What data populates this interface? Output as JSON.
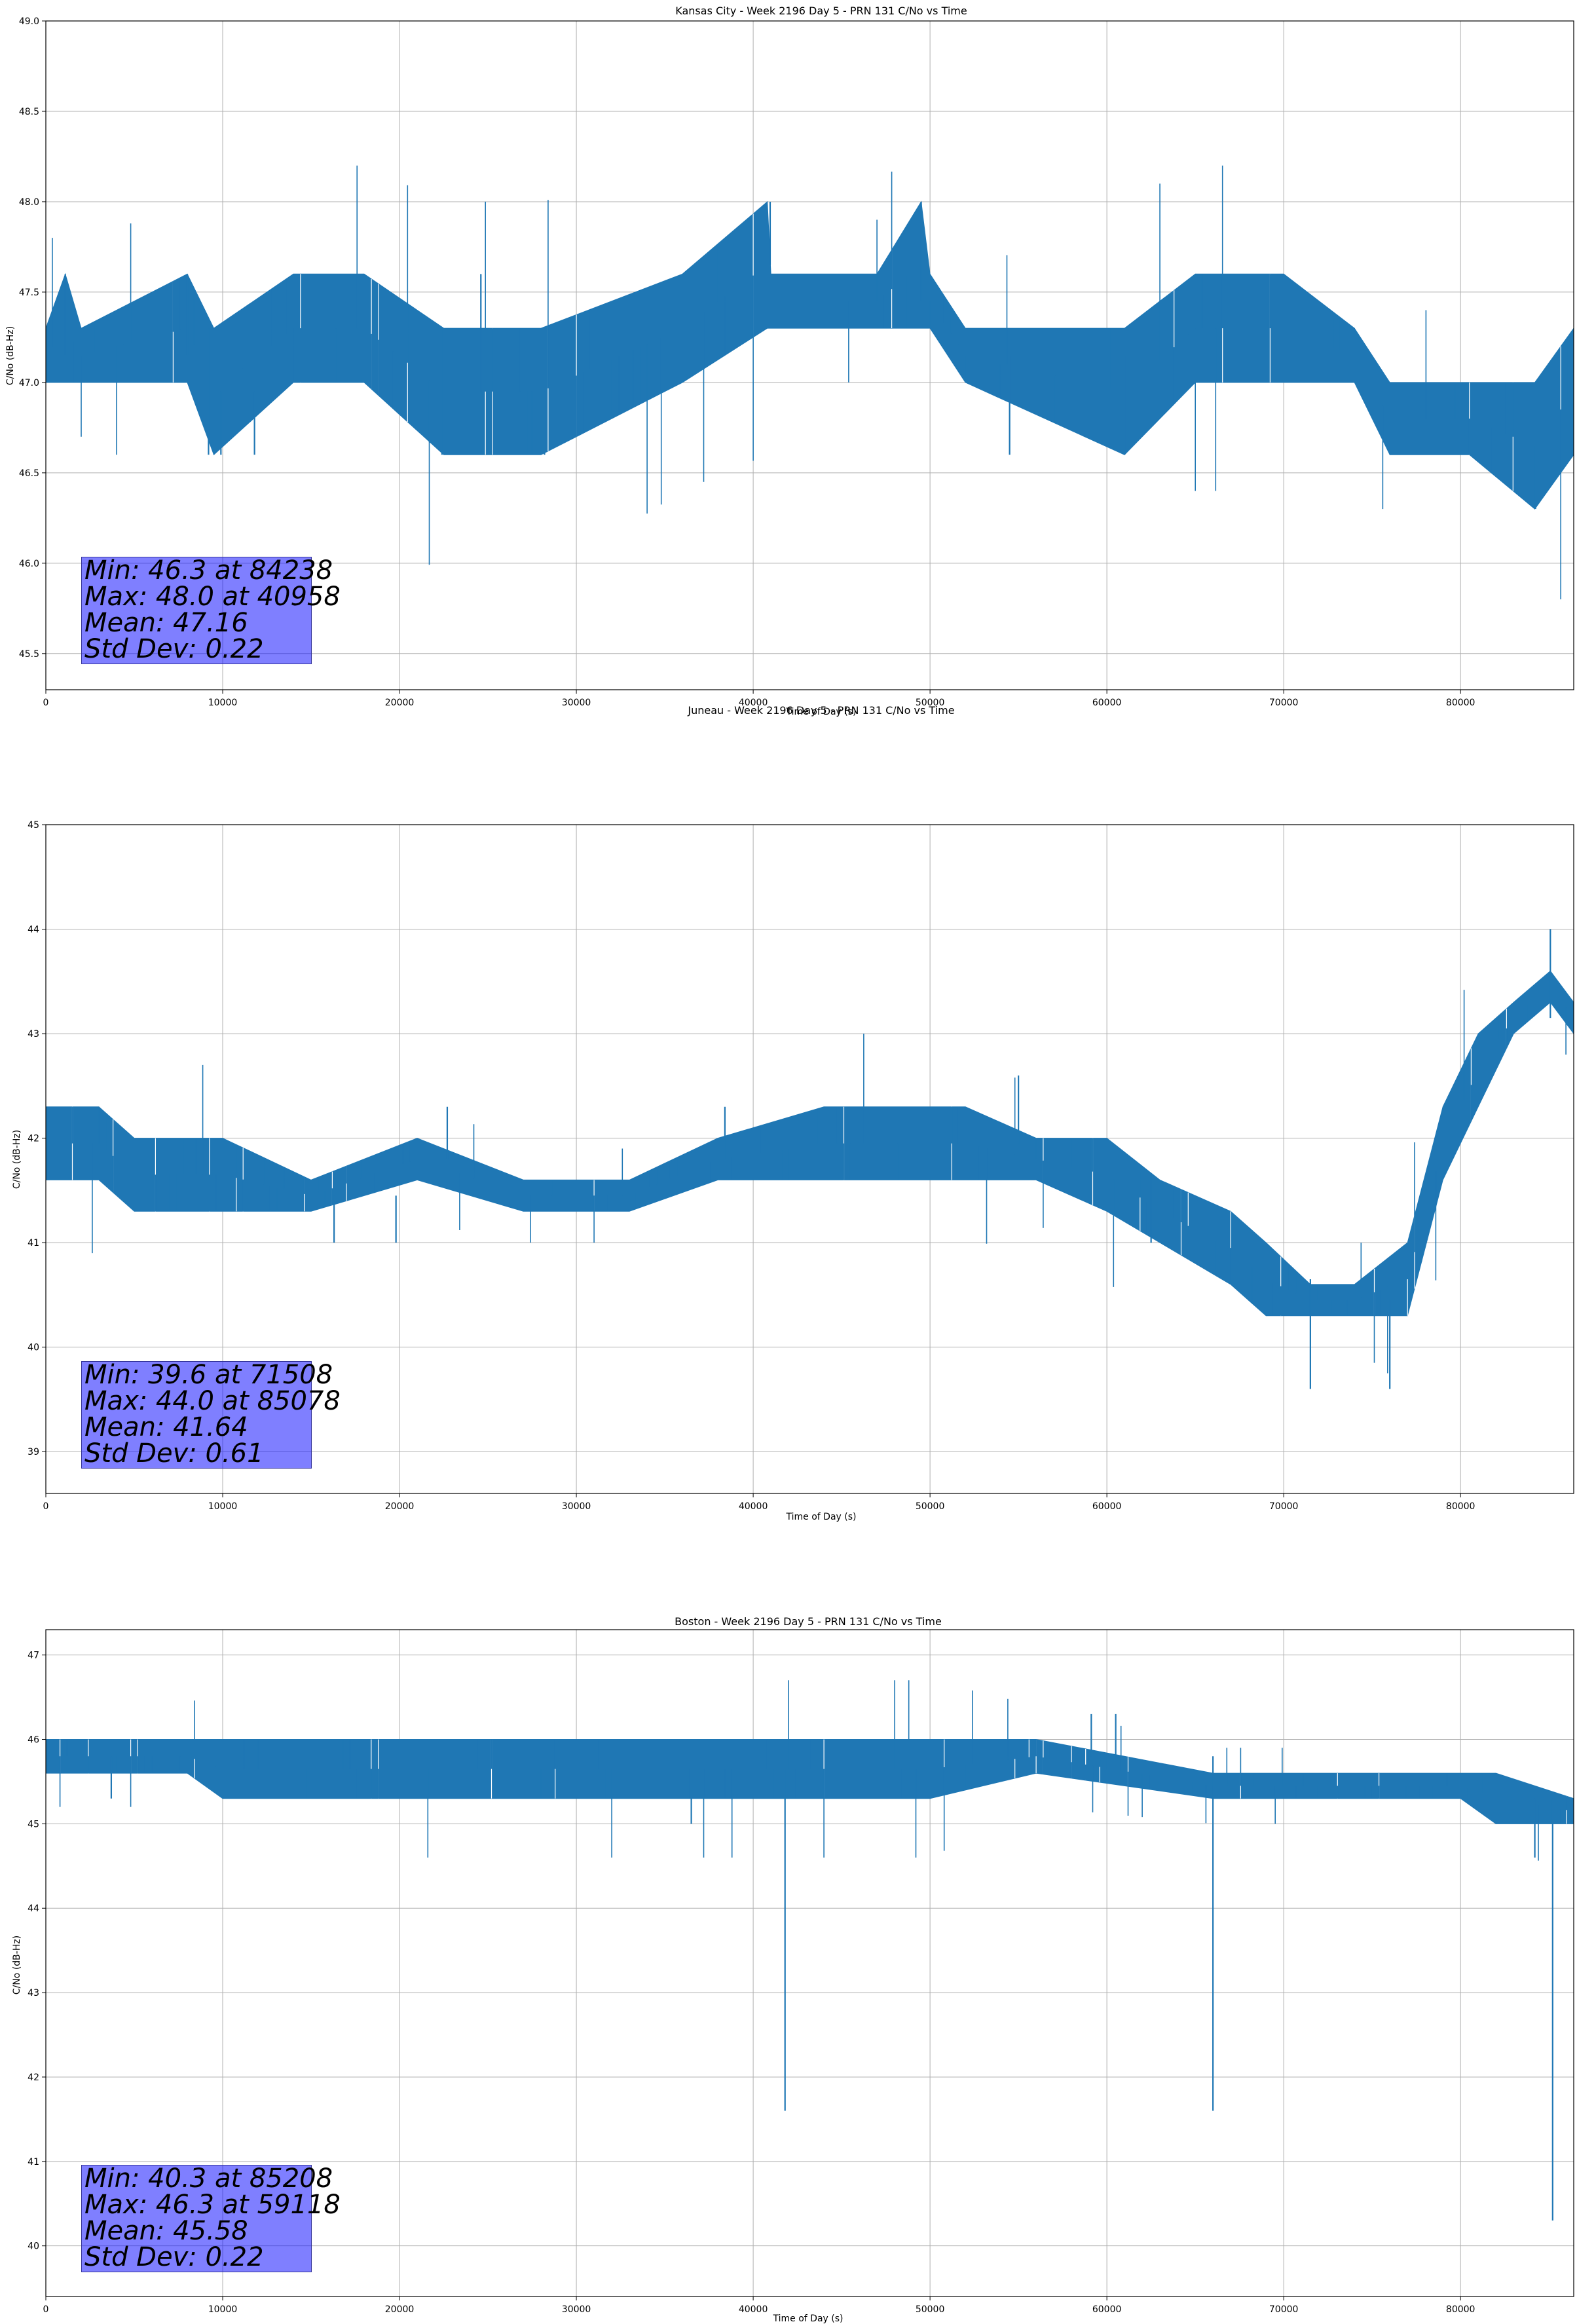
{
  "chart_data": [
    {
      "type": "line",
      "title": "Kansas City - Week 2196 Day 5 - PRN 131 C/No vs Time",
      "xlabel": "Time of Day (s)",
      "ylabel": "C/No (dB-Hz)",
      "xlim": [
        0,
        86400
      ],
      "ylim": [
        45.3,
        49.0
      ],
      "xticks": [
        0,
        10000,
        20000,
        30000,
        40000,
        50000,
        60000,
        70000,
        80000
      ],
      "yticks": [
        "45.5",
        "46.0",
        "46.5",
        "47.0",
        "47.5",
        "48.0",
        "48.5",
        "49.0"
      ],
      "grid": true,
      "color": "#1f77b4",
      "series": [
        {
          "band": [
            [
              0,
              47.0,
              47.3
            ],
            [
              1100,
              47.0,
              47.6
            ],
            [
              2000,
              47.0,
              47.3
            ],
            [
              8000,
              47.0,
              47.6
            ],
            [
              9500,
              46.6,
              47.3
            ],
            [
              14000,
              47.0,
              47.6
            ],
            [
              18000,
              47.0,
              47.6
            ],
            [
              22500,
              46.6,
              47.3
            ],
            [
              28000,
              46.6,
              47.3
            ],
            [
              36000,
              47.0,
              47.6
            ],
            [
              40800,
              47.3,
              48.0
            ],
            [
              41000,
              47.3,
              47.6
            ],
            [
              47000,
              47.3,
              47.6
            ],
            [
              49500,
              47.3,
              48.0
            ],
            [
              50000,
              47.3,
              47.6
            ],
            [
              52000,
              47.0,
              47.3
            ],
            [
              61000,
              46.6,
              47.3
            ],
            [
              65000,
              47.0,
              47.6
            ],
            [
              70000,
              47.0,
              47.6
            ],
            [
              74000,
              47.0,
              47.3
            ],
            [
              76000,
              46.6,
              47.0
            ],
            [
              80500,
              46.6,
              47.0
            ],
            [
              84200,
              46.3,
              47.0
            ],
            [
              86400,
              46.6,
              47.3
            ]
          ],
          "spikes": [
            [
              1100,
              47.6
            ],
            [
              8000,
              47.6
            ],
            [
              9200,
              46.6
            ],
            [
              9900,
              46.6
            ],
            [
              11800,
              46.6
            ],
            [
              22400,
              46.6
            ],
            [
              24600,
              47.6
            ],
            [
              27500,
              46.6
            ],
            [
              28200,
              46.6
            ],
            [
              40958,
              48.0
            ],
            [
              49500,
              48.0
            ],
            [
              54500,
              46.6
            ],
            [
              61000,
              46.6
            ],
            [
              84238,
              46.3
            ]
          ]
        }
      ],
      "stats": {
        "min": "Min: 46.3 at 84238",
        "max": "Max: 48.0 at 40958",
        "mean": "Mean: 47.16",
        "std": "Std Dev: 0.22"
      }
    },
    {
      "type": "line",
      "title": "Juneau - Week 2196 Day 5 - PRN 131 C/No vs Time",
      "xlabel": "Time of Day (s)",
      "ylabel": "C/No (dB-Hz)",
      "xlim": [
        0,
        86400
      ],
      "ylim": [
        38.6,
        45.0
      ],
      "xticks": [
        0,
        10000,
        20000,
        30000,
        40000,
        50000,
        60000,
        70000,
        80000
      ],
      "yticks": [
        "39",
        "40",
        "41",
        "42",
        "43",
        "44",
        "45"
      ],
      "grid": true,
      "color": "#1f77b4",
      "series": [
        {
          "band": [
            [
              0,
              41.6,
              42.3
            ],
            [
              3000,
              41.6,
              42.3
            ],
            [
              5000,
              41.3,
              42.0
            ],
            [
              7000,
              41.3,
              42.0
            ],
            [
              10000,
              41.3,
              42.0
            ],
            [
              15000,
              41.3,
              41.6
            ],
            [
              21000,
              41.6,
              42.0
            ],
            [
              27000,
              41.3,
              41.6
            ],
            [
              33000,
              41.3,
              41.6
            ],
            [
              38000,
              41.6,
              42.0
            ],
            [
              44000,
              41.6,
              42.3
            ],
            [
              47000,
              41.6,
              42.3
            ],
            [
              52000,
              41.6,
              42.3
            ],
            [
              56000,
              41.6,
              42.0
            ],
            [
              60000,
              41.3,
              42.0
            ],
            [
              63000,
              41.0,
              41.6
            ],
            [
              67000,
              40.6,
              41.3
            ],
            [
              69000,
              40.3,
              41.0
            ],
            [
              71508,
              40.3,
              40.6
            ],
            [
              74000,
              40.3,
              40.6
            ],
            [
              77000,
              40.3,
              41.0
            ],
            [
              79000,
              41.6,
              42.3
            ],
            [
              81000,
              42.3,
              43.0
            ],
            [
              83000,
              43.0,
              43.3
            ],
            [
              85078,
              43.3,
              43.6
            ],
            [
              86400,
              43.0,
              43.3
            ]
          ],
          "spikes": [
            [
              16300,
              41.0
            ],
            [
              19800,
              41.0
            ],
            [
              22700,
              42.3
            ],
            [
              38400,
              42.3
            ],
            [
              55000,
              42.6
            ],
            [
              62500,
              41.0
            ],
            [
              71508,
              39.6
            ],
            [
              76000,
              39.6
            ],
            [
              85078,
              44.0
            ]
          ]
        }
      ],
      "stats": {
        "min": "Min: 39.6 at 71508",
        "max": "Max: 44.0 at 85078",
        "mean": "Mean: 41.64",
        "std": "Std Dev: 0.61"
      }
    },
    {
      "type": "line",
      "title": "Boston - Week 2196 Day 5 - PRN 131 C/No vs Time",
      "xlabel": "Time of Day (s)",
      "ylabel": "C/No (dB-Hz)",
      "xlim": [
        0,
        86400
      ],
      "ylim": [
        39.4,
        47.3
      ],
      "xticks": [
        0,
        10000,
        20000,
        30000,
        40000,
        50000,
        60000,
        70000,
        80000
      ],
      "yticks": [
        "40",
        "41",
        "42",
        "43",
        "44",
        "45",
        "46",
        "47"
      ],
      "grid": true,
      "color": "#1f77b4",
      "series": [
        {
          "band": [
            [
              0,
              45.6,
              46.0
            ],
            [
              8000,
              45.6,
              46.0
            ],
            [
              10000,
              45.3,
              46.0
            ],
            [
              20000,
              45.3,
              46.0
            ],
            [
              30000,
              45.3,
              46.0
            ],
            [
              40000,
              45.3,
              46.0
            ],
            [
              50000,
              45.3,
              46.0
            ],
            [
              56000,
              45.6,
              46.0
            ],
            [
              66000,
              45.3,
              45.6
            ],
            [
              75000,
              45.3,
              45.6
            ],
            [
              80000,
              45.3,
              45.6
            ],
            [
              82000,
              45.0,
              45.6
            ],
            [
              86400,
              45.0,
              45.3
            ]
          ],
          "spikes": [
            [
              3700,
              45.3
            ],
            [
              36500,
              45.0
            ],
            [
              41800,
              41.6
            ],
            [
              59118,
              46.3
            ],
            [
              60500,
              46.3
            ],
            [
              66000,
              41.6
            ],
            [
              84200,
              44.6
            ],
            [
              85208,
              40.3
            ]
          ]
        }
      ],
      "stats": {
        "min": "Min: 40.3 at 85208",
        "max": "Max: 46.3 at 59118",
        "mean": "Mean: 45.58",
        "std": "Std Dev: 0.22"
      }
    }
  ]
}
